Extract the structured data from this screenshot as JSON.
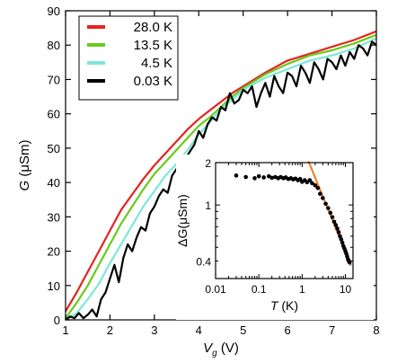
{
  "chart_data": [
    {
      "type": "line",
      "xlabel": {
        "main": "V",
        "sub": "g",
        "unit": " (V)"
      },
      "ylabel": {
        "main": "G",
        "unit": " (μSm)"
      },
      "xlim": [
        1,
        8
      ],
      "ylim": [
        0,
        90
      ],
      "xticks": [
        "1",
        "2",
        "3",
        "4",
        "5",
        "6",
        "7",
        "8"
      ],
      "yticks": [
        "0",
        "10",
        "20",
        "30",
        "40",
        "50",
        "60",
        "70",
        "80",
        "90"
      ],
      "legend_position": "top-left",
      "series": [
        {
          "name": "28.0 K",
          "color": "#e8231b",
          "x": [
            1.0,
            1.25,
            1.5,
            1.75,
            2.0,
            2.25,
            2.5,
            2.75,
            3.0,
            3.25,
            3.5,
            3.75,
            4.0,
            4.25,
            4.5,
            4.75,
            5.0,
            5.5,
            6.0,
            6.5,
            7.0,
            7.5,
            8.0
          ],
          "y": [
            2.5,
            8,
            14,
            20,
            26,
            32,
            36.5,
            41,
            45,
            48.5,
            52,
            55.5,
            58.5,
            61,
            63.5,
            66,
            68,
            72,
            75.5,
            77.5,
            79.5,
            81.5,
            84
          ]
        },
        {
          "name": "13.5 K",
          "color": "#66cc1d",
          "x": [
            1.0,
            1.25,
            1.5,
            1.75,
            2.0,
            2.25,
            2.5,
            2.75,
            3.0,
            3.25,
            3.5,
            3.75,
            4.0,
            4.25,
            4.5,
            4.75,
            5.0,
            5.5,
            6.0,
            6.5,
            7.0,
            7.5,
            8.0
          ],
          "y": [
            0.5,
            5,
            10,
            16,
            22,
            28,
            33,
            38,
            42.5,
            46,
            49.5,
            53,
            56.5,
            59,
            62,
            65,
            67.5,
            71.5,
            74.5,
            77,
            78.5,
            80.5,
            83
          ]
        },
        {
          "name": "4.5 K",
          "color": "#7fe6d8",
          "x": [
            1.0,
            1.25,
            1.5,
            1.75,
            2.0,
            2.25,
            2.5,
            2.75,
            3.0,
            3.25,
            3.5,
            3.75,
            4.0,
            4.25,
            4.5,
            4.75,
            5.0,
            5.5,
            6.0,
            6.5,
            7.0,
            7.5,
            8.0
          ],
          "y": [
            0,
            2,
            6,
            10.5,
            16.5,
            22,
            27.5,
            33,
            37.5,
            42,
            45.5,
            49.5,
            54,
            57.5,
            61.5,
            64,
            67,
            70.5,
            73,
            75.5,
            77,
            79,
            82
          ]
        },
        {
          "name": "0.03 K",
          "color": "#000000",
          "x": [
            1.0,
            1.1,
            1.2,
            1.3,
            1.4,
            1.5,
            1.6,
            1.7,
            1.8,
            1.9,
            2.0,
            2.1,
            2.2,
            2.3,
            2.4,
            2.5,
            2.6,
            2.7,
            2.8,
            2.9,
            3.0,
            3.1,
            3.2,
            3.3,
            3.4,
            3.5,
            3.6,
            3.7,
            3.8,
            3.9,
            4.0,
            4.1,
            4.2,
            4.3,
            4.4,
            4.5,
            4.6,
            4.7,
            4.8,
            4.9,
            5.0,
            5.1,
            5.2,
            5.3,
            5.4,
            5.5,
            5.6,
            5.7,
            5.8,
            5.9,
            6.0,
            6.1,
            6.2,
            6.3,
            6.4,
            6.5,
            6.6,
            6.7,
            6.8,
            6.9,
            7.0,
            7.1,
            7.2,
            7.3,
            7.4,
            7.5,
            7.6,
            7.7,
            7.8,
            7.9,
            8.0
          ],
          "y": [
            0,
            1,
            0.5,
            2,
            0.5,
            1.5,
            3,
            1,
            6,
            8,
            12,
            16,
            11,
            18,
            22,
            20,
            24,
            27,
            26,
            31,
            33,
            36,
            38,
            37,
            42,
            44,
            43,
            47,
            49,
            51,
            55,
            53,
            57,
            59,
            58,
            62,
            61,
            66,
            63,
            64,
            67,
            66,
            68,
            62,
            66,
            69,
            65,
            71,
            68,
            66,
            72,
            71,
            68,
            74,
            72,
            69,
            75,
            73,
            70,
            76,
            75,
            73,
            77,
            74,
            78,
            76,
            80,
            79,
            77,
            81,
            80
          ]
        }
      ]
    },
    {
      "type": "scatter",
      "xlabel": {
        "main": "T",
        "unit": " (K)"
      },
      "ylabel": {
        "main": "ΔG",
        "unit": "(μSm)"
      },
      "xscale": "log",
      "yscale": "log",
      "xlim": [
        0.01,
        15
      ],
      "ylim": [
        0.3,
        2
      ],
      "xticks": [
        {
          "value": 0.01,
          "label": "0.01"
        },
        {
          "value": 0.1,
          "label": "0.1"
        },
        {
          "value": 1,
          "label": "1"
        },
        {
          "value": 10,
          "label": "10"
        }
      ],
      "yticks": [
        {
          "value": 0.4,
          "label": "0.4"
        },
        {
          "value": 1,
          "label": "1"
        },
        {
          "value": 2,
          "label": "2"
        }
      ],
      "points": {
        "color": "#000000",
        "T": [
          0.03,
          0.05,
          0.08,
          0.1,
          0.13,
          0.17,
          0.2,
          0.24,
          0.28,
          0.32,
          0.37,
          0.42,
          0.48,
          0.55,
          0.62,
          0.7,
          0.8,
          0.9,
          1.0,
          1.15,
          1.3,
          1.5,
          1.7,
          2.0,
          2.3,
          2.6,
          3.0,
          3.5,
          4.0,
          4.5,
          5.0,
          5.5,
          6.0,
          6.5,
          7.0,
          7.5,
          8.0,
          8.5,
          9.0,
          9.5,
          10.0,
          10.5,
          11.0,
          11.5,
          12.0,
          12.5
        ],
        "dG": [
          1.62,
          1.58,
          1.55,
          1.6,
          1.57,
          1.6,
          1.56,
          1.58,
          1.55,
          1.58,
          1.55,
          1.57,
          1.53,
          1.55,
          1.52,
          1.54,
          1.5,
          1.53,
          1.46,
          1.5,
          1.45,
          1.5,
          1.43,
          1.38,
          1.32,
          1.2,
          1.12,
          1.02,
          0.95,
          0.88,
          0.82,
          0.76,
          0.72,
          0.68,
          0.64,
          0.6,
          0.57,
          0.54,
          0.51,
          0.49,
          0.47,
          0.45,
          0.43,
          0.41,
          0.4,
          0.39
        ]
      },
      "fit": {
        "color": "#f07b1e",
        "T": [
          1.4,
          13.5
        ],
        "dG": [
          2.05,
          0.37
        ]
      }
    }
  ]
}
